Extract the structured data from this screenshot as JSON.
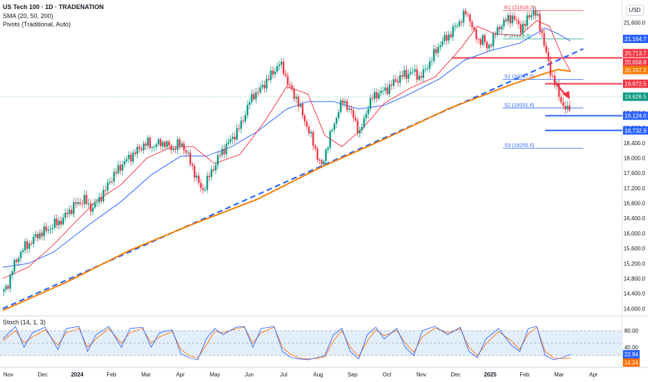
{
  "header": {
    "title": "US Tech 100 · 1D · TRADENATION",
    "sma_label": "SMA (20, 50, 200)",
    "pivots_label": "Pivots (Traditional, Auto)",
    "stoch_label": "Stoch (14, 1, 3)"
  },
  "currency": "USD",
  "colors": {
    "up": "#089981",
    "down": "#f23645",
    "sma20": "#f23645",
    "sma50": "#2962ff",
    "sma200": "#f57c00",
    "trendline": "#2962ff",
    "stoch_k": "#2962ff",
    "stoch_d": "#ff6d00",
    "stoch_band": "#e3eefb"
  },
  "chart_data": {
    "type": "line",
    "title": "US Tech 100 · 1D · TRADENATION",
    "description_series": [
      "price",
      "SMA 20",
      "SMA 50",
      "SMA 200",
      "trendline"
    ],
    "price_axis": {
      "ticks": [
        "21,600.0",
        "21,200.0",
        "20,800.0",
        "20,400.0",
        "20,000.0",
        "19,600.0",
        "19,200.0",
        "18,800.0",
        "18,400.0",
        "18,000.0",
        "17,600.0",
        "17,200.0",
        "16,800.0",
        "16,400.0",
        "16,000.0",
        "15,600.0",
        "15,200.0",
        "14,800.0",
        "14,400.0",
        "14,000.0"
      ],
      "ylim": [
        13950,
        22050
      ]
    },
    "x_axis": {
      "ticks": [
        "Nov",
        "Dec",
        "2024",
        "Feb",
        "Mar",
        "Apr",
        "May",
        "Jun",
        "Jul",
        "Aug",
        "Sep",
        "Oct",
        "Nov",
        "Dec",
        "2025",
        "Feb",
        "Mar",
        "Apr"
      ],
      "bold_ticks": [
        "2024",
        "2025"
      ]
    },
    "price_labels": [
      {
        "value": 21164.7,
        "label": "21,164.7",
        "color": "#2962ff"
      },
      {
        "value": 20713.7,
        "label": "20,713.7",
        "color": "#f23645"
      },
      {
        "value": 20658.8,
        "label": "20,658.8",
        "color": "#f23645"
      },
      {
        "value": 20337.2,
        "label": "20,337.2",
        "color": "#f57c00"
      },
      {
        "value": 19972.5,
        "label": "19,972.5",
        "color": "#f23645"
      },
      {
        "value": 19628.5,
        "label": "19,628.5",
        "color": "#089981"
      },
      {
        "value": 19124.0,
        "label": "19,124.0",
        "color": "#2962ff"
      },
      {
        "value": 18732.9,
        "label": "18,732.9",
        "color": "#2962ff"
      }
    ],
    "pivots": [
      {
        "label": "R1 (21918.3)",
        "value": 21918.3
      },
      {
        "label": "P (21163.8)",
        "value": 21163.8
      },
      {
        "label": "S1 (20087.5)",
        "value": 20087.5
      },
      {
        "label": "S2 (19331.8)",
        "value": 19331.8
      },
      {
        "label": "S3 (18255.5)",
        "value": 18255.5
      }
    ],
    "horizontal_lines": [
      {
        "value": 20658.8,
        "color": "#f23645"
      },
      {
        "value": 19972.5,
        "color": "#f23645"
      },
      {
        "value": 19124.0,
        "color": "#2962ff"
      },
      {
        "value": 18732.9,
        "color": "#2962ff"
      }
    ],
    "price_path": [
      [
        0,
        14450
      ],
      [
        2,
        14650
      ],
      [
        4,
        15050
      ],
      [
        6,
        15280
      ],
      [
        8,
        15500
      ],
      [
        10,
        15650
      ],
      [
        12,
        15720
      ],
      [
        14,
        15850
      ],
      [
        16,
        15950
      ],
      [
        18,
        16020
      ],
      [
        20,
        16080
      ],
      [
        22,
        16150
      ],
      [
        24,
        16250
      ],
      [
        26,
        16300
      ],
      [
        28,
        16380
      ],
      [
        30,
        16550
      ],
      [
        32,
        16650
      ],
      [
        34,
        16780
      ],
      [
        36,
        16820
      ],
      [
        38,
        16900
      ],
      [
        40,
        16720
      ],
      [
        42,
        16680
      ],
      [
        44,
        16820
      ],
      [
        46,
        17000
      ],
      [
        48,
        17150
      ],
      [
        50,
        17400
      ],
      [
        52,
        17550
      ],
      [
        54,
        17700
      ],
      [
        56,
        17850
      ],
      [
        58,
        17950
      ],
      [
        60,
        18050
      ],
      [
        62,
        18150
      ],
      [
        64,
        18250
      ],
      [
        66,
        18350
      ],
      [
        68,
        18400
      ],
      [
        70,
        18300
      ],
      [
        72,
        18350
      ],
      [
        74,
        18420
      ],
      [
        76,
        18380
      ],
      [
        78,
        18300
      ],
      [
        80,
        18250
      ],
      [
        82,
        18350
      ],
      [
        84,
        18380
      ],
      [
        86,
        18150
      ],
      [
        88,
        17900
      ],
      [
        90,
        17600
      ],
      [
        92,
        17300
      ],
      [
        94,
        17150
      ],
      [
        96,
        17400
      ],
      [
        98,
        17650
      ],
      [
        100,
        17850
      ],
      [
        102,
        18100
      ],
      [
        104,
        18250
      ],
      [
        106,
        18400
      ],
      [
        108,
        18550
      ],
      [
        110,
        18700
      ],
      [
        112,
        18900
      ],
      [
        114,
        19200
      ],
      [
        116,
        19500
      ],
      [
        118,
        19700
      ],
      [
        120,
        19750
      ],
      [
        122,
        19900
      ],
      [
        124,
        20050
      ],
      [
        126,
        20200
      ],
      [
        128,
        20350
      ],
      [
        130,
        20500
      ],
      [
        132,
        20350
      ],
      [
        134,
        20000
      ],
      [
        136,
        19750
      ],
      [
        138,
        19600
      ],
      [
        140,
        19300
      ],
      [
        142,
        19000
      ],
      [
        144,
        18700
      ],
      [
        146,
        18400
      ],
      [
        148,
        18050
      ],
      [
        150,
        17750
      ],
      [
        152,
        18200
      ],
      [
        154,
        18600
      ],
      [
        156,
        18900
      ],
      [
        158,
        19300
      ],
      [
        160,
        19500
      ],
      [
        162,
        19400
      ],
      [
        164,
        19200
      ],
      [
        166,
        18950
      ],
      [
        168,
        18650
      ],
      [
        170,
        19000
      ],
      [
        172,
        19400
      ],
      [
        174,
        19600
      ],
      [
        176,
        19700
      ],
      [
        178,
        19750
      ],
      [
        180,
        19800
      ],
      [
        182,
        19900
      ],
      [
        184,
        20000
      ],
      [
        186,
        20100
      ],
      [
        188,
        20200
      ],
      [
        190,
        20200
      ],
      [
        192,
        20300
      ],
      [
        194,
        20250
      ],
      [
        196,
        20150
      ],
      [
        198,
        20250
      ],
      [
        200,
        20450
      ],
      [
        202,
        20650
      ],
      [
        204,
        20850
      ],
      [
        206,
        21050
      ],
      [
        208,
        21150
      ],
      [
        210,
        21250
      ],
      [
        212,
        21400
      ],
      [
        214,
        21550
      ],
      [
        216,
        21700
      ],
      [
        218,
        21850
      ],
      [
        220,
        21700
      ],
      [
        222,
        21300
      ],
      [
        224,
        21100
      ],
      [
        226,
        21200
      ],
      [
        228,
        20900
      ],
      [
        230,
        21100
      ],
      [
        232,
        21300
      ],
      [
        234,
        21500
      ],
      [
        236,
        21600
      ],
      [
        238,
        21700
      ],
      [
        240,
        21750
      ],
      [
        242,
        21600
      ],
      [
        244,
        21450
      ],
      [
        246,
        21550
      ],
      [
        248,
        21800
      ],
      [
        250,
        21900
      ],
      [
        252,
        21700
      ],
      [
        254,
        21300
      ],
      [
        256,
        20750
      ],
      [
        258,
        20300
      ],
      [
        260,
        20000
      ],
      [
        262,
        19650
      ],
      [
        264,
        19400
      ],
      [
        266,
        19250
      ],
      [
        268,
        19450
      ]
    ],
    "sma20_path": [
      [
        0,
        14800
      ],
      [
        12,
        15100
      ],
      [
        24,
        15700
      ],
      [
        36,
        16400
      ],
      [
        44,
        16850
      ],
      [
        56,
        17300
      ],
      [
        68,
        18000
      ],
      [
        80,
        18300
      ],
      [
        90,
        18300
      ],
      [
        100,
        17850
      ],
      [
        112,
        18100
      ],
      [
        124,
        19000
      ],
      [
        134,
        19900
      ],
      [
        144,
        19700
      ],
      [
        152,
        18600
      ],
      [
        160,
        18300
      ],
      [
        170,
        18800
      ],
      [
        180,
        19450
      ],
      [
        192,
        19850
      ],
      [
        204,
        20150
      ],
      [
        216,
        20900
      ],
      [
        224,
        21500
      ],
      [
        232,
        21300
      ],
      [
        244,
        21250
      ],
      [
        252,
        21650
      ],
      [
        258,
        21500
      ],
      [
        264,
        20700
      ],
      [
        268,
        20300
      ]
    ],
    "sma50_path": [
      [
        0,
        15100
      ],
      [
        12,
        15200
      ],
      [
        24,
        15500
      ],
      [
        40,
        16200
      ],
      [
        56,
        16850
      ],
      [
        70,
        17550
      ],
      [
        84,
        18050
      ],
      [
        96,
        18050
      ],
      [
        108,
        18300
      ],
      [
        120,
        18700
      ],
      [
        134,
        19300
      ],
      [
        144,
        19500
      ],
      [
        156,
        19500
      ],
      [
        168,
        19300
      ],
      [
        180,
        19400
      ],
      [
        192,
        19700
      ],
      [
        206,
        20100
      ],
      [
        218,
        20600
      ],
      [
        230,
        20850
      ],
      [
        244,
        21050
      ],
      [
        256,
        21450
      ],
      [
        262,
        21300
      ],
      [
        268,
        21100
      ]
    ],
    "sma200_path": [
      [
        0,
        13950
      ],
      [
        30,
        14700
      ],
      [
        60,
        15550
      ],
      [
        90,
        16250
      ],
      [
        120,
        16900
      ],
      [
        150,
        17750
      ],
      [
        180,
        18500
      ],
      [
        210,
        19300
      ],
      [
        240,
        19950
      ],
      [
        256,
        20250
      ],
      [
        262,
        20350
      ],
      [
        268,
        20300
      ]
    ],
    "trendline": [
      [
        0,
        14000
      ],
      [
        274,
        20900
      ]
    ]
  },
  "stoch": {
    "ticks": [
      "80.00",
      "40.00"
    ],
    "k_label": "22.94",
    "d_label": "14.24",
    "ylim": [
      0,
      100
    ],
    "band": [
      20,
      80
    ],
    "k_path": [
      [
        0,
        60
      ],
      [
        6,
        90
      ],
      [
        10,
        40
      ],
      [
        14,
        75
      ],
      [
        20,
        88
      ],
      [
        26,
        35
      ],
      [
        30,
        85
      ],
      [
        36,
        90
      ],
      [
        40,
        30
      ],
      [
        44,
        70
      ],
      [
        50,
        90
      ],
      [
        56,
        40
      ],
      [
        60,
        85
      ],
      [
        66,
        88
      ],
      [
        70,
        40
      ],
      [
        74,
        75
      ],
      [
        80,
        82
      ],
      [
        84,
        25
      ],
      [
        88,
        15
      ],
      [
        92,
        10
      ],
      [
        96,
        60
      ],
      [
        100,
        85
      ],
      [
        104,
        70
      ],
      [
        110,
        88
      ],
      [
        114,
        90
      ],
      [
        118,
        40
      ],
      [
        122,
        85
      ],
      [
        128,
        90
      ],
      [
        132,
        30
      ],
      [
        136,
        15
      ],
      [
        140,
        12
      ],
      [
        144,
        10
      ],
      [
        148,
        15
      ],
      [
        152,
        20
      ],
      [
        156,
        70
      ],
      [
        160,
        85
      ],
      [
        164,
        30
      ],
      [
        168,
        12
      ],
      [
        172,
        70
      ],
      [
        176,
        88
      ],
      [
        180,
        60
      ],
      [
        186,
        85
      ],
      [
        190,
        40
      ],
      [
        194,
        20
      ],
      [
        198,
        80
      ],
      [
        204,
        90
      ],
      [
        210,
        70
      ],
      [
        216,
        88
      ],
      [
        220,
        30
      ],
      [
        224,
        15
      ],
      [
        228,
        60
      ],
      [
        234,
        85
      ],
      [
        240,
        45
      ],
      [
        244,
        30
      ],
      [
        248,
        85
      ],
      [
        252,
        90
      ],
      [
        256,
        20
      ],
      [
        260,
        10
      ],
      [
        264,
        15
      ],
      [
        268,
        22.94
      ]
    ],
    "d_path": [
      [
        0,
        55
      ],
      [
        6,
        80
      ],
      [
        10,
        50
      ],
      [
        14,
        65
      ],
      [
        20,
        82
      ],
      [
        26,
        45
      ],
      [
        30,
        75
      ],
      [
        36,
        85
      ],
      [
        40,
        40
      ],
      [
        44,
        60
      ],
      [
        50,
        85
      ],
      [
        56,
        50
      ],
      [
        60,
        75
      ],
      [
        66,
        85
      ],
      [
        70,
        50
      ],
      [
        74,
        65
      ],
      [
        80,
        78
      ],
      [
        84,
        35
      ],
      [
        88,
        20
      ],
      [
        92,
        14
      ],
      [
        96,
        45
      ],
      [
        100,
        78
      ],
      [
        104,
        75
      ],
      [
        110,
        84
      ],
      [
        114,
        88
      ],
      [
        118,
        50
      ],
      [
        122,
        75
      ],
      [
        128,
        88
      ],
      [
        132,
        40
      ],
      [
        136,
        22
      ],
      [
        140,
        14
      ],
      [
        144,
        12
      ],
      [
        148,
        13
      ],
      [
        152,
        17
      ],
      [
        156,
        55
      ],
      [
        160,
        80
      ],
      [
        164,
        40
      ],
      [
        168,
        18
      ],
      [
        172,
        55
      ],
      [
        176,
        82
      ],
      [
        180,
        68
      ],
      [
        186,
        80
      ],
      [
        190,
        50
      ],
      [
        194,
        28
      ],
      [
        198,
        65
      ],
      [
        204,
        86
      ],
      [
        210,
        75
      ],
      [
        216,
        84
      ],
      [
        220,
        40
      ],
      [
        224,
        20
      ],
      [
        228,
        48
      ],
      [
        234,
        78
      ],
      [
        240,
        55
      ],
      [
        244,
        35
      ],
      [
        248,
        72
      ],
      [
        252,
        88
      ],
      [
        256,
        30
      ],
      [
        260,
        14
      ],
      [
        264,
        13
      ],
      [
        268,
        14.24
      ]
    ]
  }
}
